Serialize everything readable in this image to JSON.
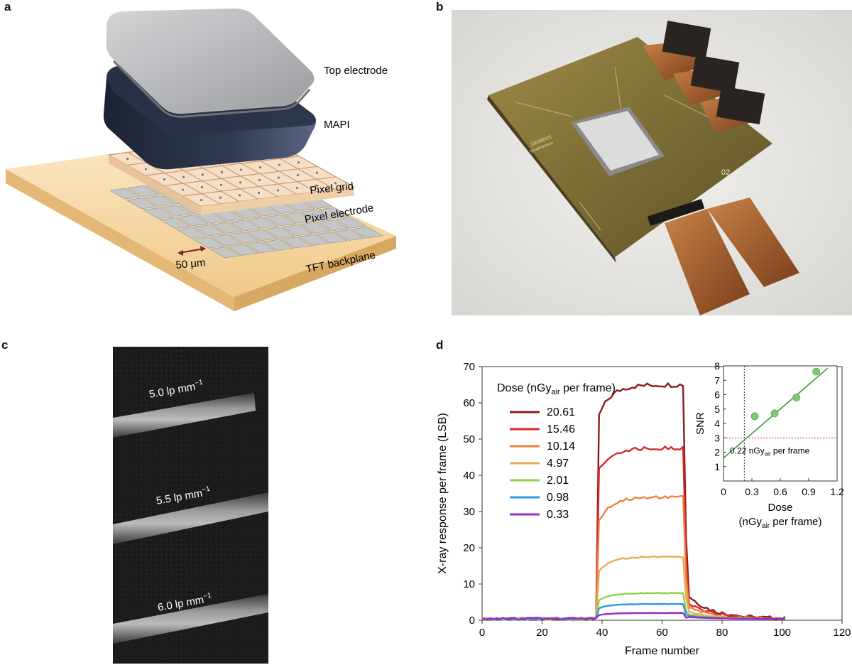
{
  "panels": {
    "a": {
      "letter": "a",
      "labels": {
        "top_electrode": "Top electrode",
        "mapi": "MAPI",
        "pixel_grid": "Pixel grid",
        "pixel_electrode": "Pixel electrode",
        "scale": "50 μm",
        "backplane": "TFT backplane"
      },
      "colors": {
        "backplane": "#f3d29a",
        "mapi": "#222a3a",
        "electrode": "#a9abad"
      }
    },
    "b": {
      "letter": "b",
      "chip_text": {
        "brand": "SIEMENS",
        "brand2": "Healthineers",
        "code": "02"
      },
      "colors": {
        "substrate": "#8a7a3c",
        "flex": "#b86f35",
        "background": "#e7e6e2"
      }
    },
    "c": {
      "letter": "c",
      "labels": [
        {
          "value": "5.0",
          "unit": "lp mm",
          "exp": "−1"
        },
        {
          "value": "5.5",
          "unit": "lp mm",
          "exp": "−1"
        },
        {
          "value": "6.0",
          "unit": "lp mm",
          "exp": "−1"
        }
      ]
    },
    "d": {
      "letter": "d"
    }
  },
  "chart_data": [
    {
      "type": "line",
      "xlabel": "Frame number",
      "ylabel": "X-ray response per frame (LSB)",
      "xlim": [
        0,
        120
      ],
      "ylim": [
        0,
        70
      ],
      "xticks": [
        0,
        20,
        40,
        60,
        80,
        100,
        120
      ],
      "yticks": [
        0,
        10,
        20,
        30,
        40,
        50,
        60,
        70
      ],
      "legend": {
        "title_pre": "Dose (nGy",
        "title_sub": "air",
        "title_post": " per frame)",
        "placement": "top-left"
      },
      "series": [
        {
          "name": "20.61",
          "color": "#8b1a1a",
          "plateau": 65,
          "peak": 54,
          "tail": 8
        },
        {
          "name": "15.46",
          "color": "#d42a2a",
          "plateau": 47.5,
          "peak": 40,
          "tail": 5.5
        },
        {
          "name": "10.14",
          "color": "#ef8040",
          "plateau": 34,
          "peak": 25.5,
          "tail": 4
        },
        {
          "name": "4.97",
          "color": "#e6ad52",
          "plateau": 17.5,
          "peak": 12.5,
          "tail": 2.5
        },
        {
          "name": "2.01",
          "color": "#8fd444",
          "plateau": 7.5,
          "peak": 5,
          "tail": 1.5
        },
        {
          "name": "0.98",
          "color": "#2a9ae0",
          "plateau": 4.5,
          "peak": 3,
          "tail": 1
        },
        {
          "name": "0.33",
          "color": "#9a2ac8",
          "plateau": 2,
          "peak": 1.3,
          "tail": 0.6
        }
      ],
      "x_on": 38,
      "x_off": 67,
      "x_end": 101
    },
    {
      "type": "scatter",
      "xlabel_main": "Dose",
      "xlabel_pre": "(nGy",
      "xlabel_sub": "air",
      "xlabel_post": " per frame)",
      "ylabel": "SNR",
      "xlim": [
        0,
        1.2
      ],
      "ylim": [
        0,
        8
      ],
      "xticks": [
        "0",
        "0.3",
        "0.6",
        "0.9",
        "1.2"
      ],
      "yticks": [
        "1",
        "2",
        "3",
        "4",
        "5",
        "6",
        "7",
        "8"
      ],
      "points": [
        {
          "x": 0.33,
          "y": 4.5
        },
        {
          "x": 0.54,
          "y": 4.7
        },
        {
          "x": 0.77,
          "y": 5.8
        },
        {
          "x": 0.98,
          "y": 7.6
        }
      ],
      "fit": {
        "x1": 0,
        "y1": 1.6,
        "x2": 1.2,
        "y2": 8.4,
        "color": "#3a9a3a"
      },
      "threshold_snr": 3,
      "threshold_dose": 0.22,
      "annotation_pre": "0.22 nGy",
      "annotation_sub": "air",
      "annotation_post": " per frame",
      "point_color": "#7cc970"
    }
  ]
}
